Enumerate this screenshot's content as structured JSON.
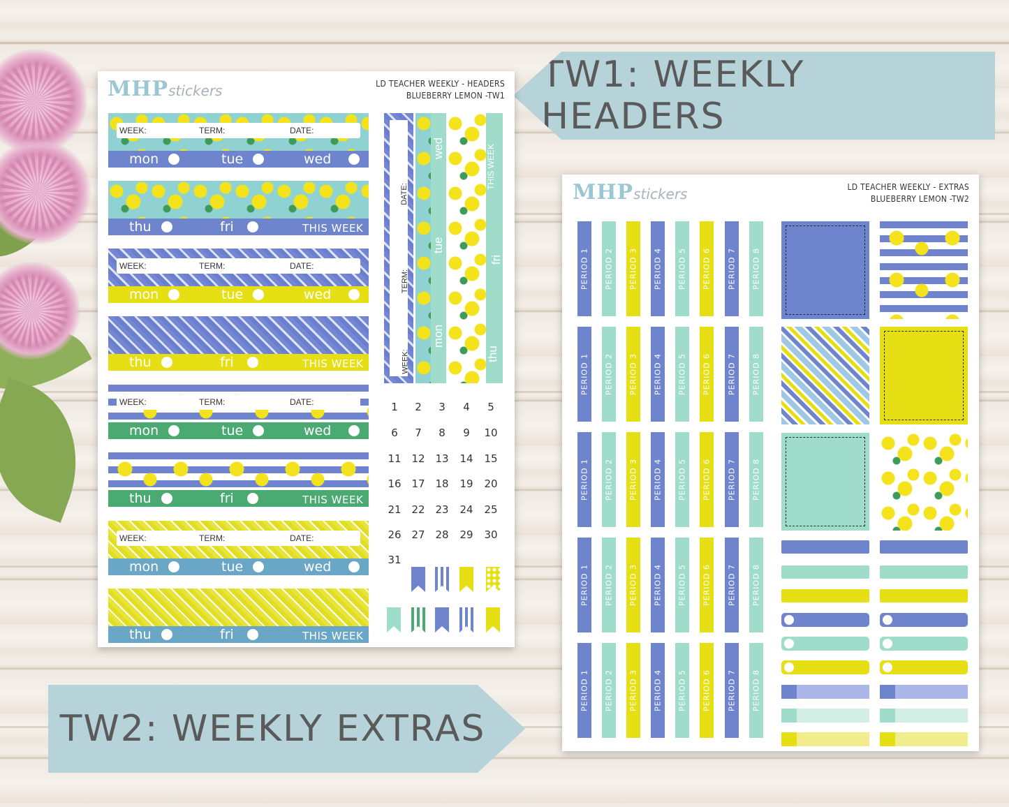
{
  "banners": {
    "tw1": "TW1: WEEKLY HEADERS",
    "tw2": "TW2: WEEKLY EXTRAS"
  },
  "sheet1": {
    "logo_main": "MHP",
    "logo_script": "stickers",
    "title_line1": "LD TEACHER WEEKLY - HEADERS",
    "title_line2": "BLUEBERRY LEMON -TW1",
    "fields": {
      "week": "WEEK:",
      "term": "TERM:",
      "date": "DATE:"
    },
    "days_a": [
      "mon",
      "tue",
      "wed"
    ],
    "days_b": [
      "thu",
      "fri",
      "THIS WEEK"
    ],
    "vertical_days": [
      "wed",
      "tue",
      "mon",
      "fri",
      "thu",
      "THIS WEEK"
    ],
    "vertical_fields": [
      "DATE:",
      "TERM:",
      "WEEK:"
    ],
    "numbers": [
      "1",
      "2",
      "3",
      "4",
      "5",
      "6",
      "7",
      "8",
      "9",
      "10",
      "11",
      "12",
      "13",
      "14",
      "15",
      "16",
      "17",
      "18",
      "19",
      "20",
      "21",
      "22",
      "23",
      "24",
      "25",
      "26",
      "27",
      "28",
      "29",
      "30",
      "31"
    ]
  },
  "sheet2": {
    "logo_main": "MHP",
    "logo_script": "stickers",
    "title_line1": "LD TEACHER WEEKLY - EXTRAS",
    "title_line2": "BLUEBERRY LEMON -TW2",
    "periods": [
      "PERIOD 1",
      "PERIOD 2",
      "PERIOD 3",
      "PERIOD 4",
      "PERIOD 5",
      "PERIOD 6",
      "PERIOD 7",
      "PERIOD 8"
    ]
  },
  "colors": {
    "blue": "#6e84cc",
    "mint": "#9fdcc9",
    "yellow": "#e5df14",
    "green": "#4aaa72",
    "steel": "#6aa6c6",
    "banner": "#b6d3da"
  }
}
